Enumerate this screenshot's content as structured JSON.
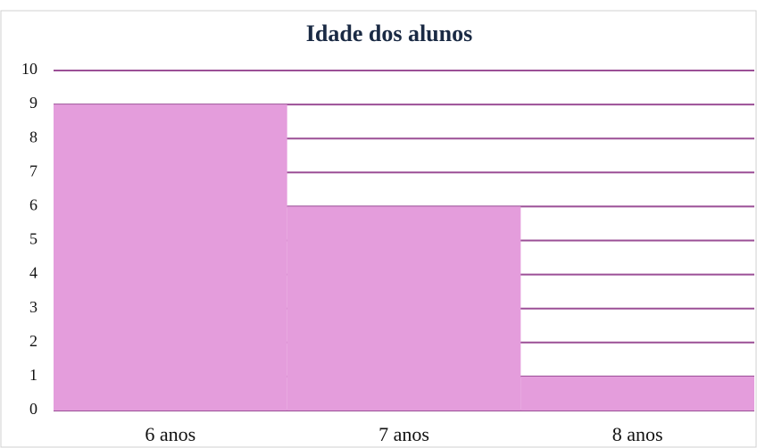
{
  "chart_data": {
    "type": "bar",
    "title": "Idade dos alunos",
    "categories": [
      "6 anos",
      "7 anos",
      "8 anos"
    ],
    "values": [
      9,
      6,
      1
    ],
    "color": "#e49ddc",
    "ylim": [
      0,
      10
    ],
    "yticks": [
      0,
      1,
      2,
      3,
      4,
      5,
      6,
      7,
      8,
      9,
      10
    ],
    "grid": true
  }
}
